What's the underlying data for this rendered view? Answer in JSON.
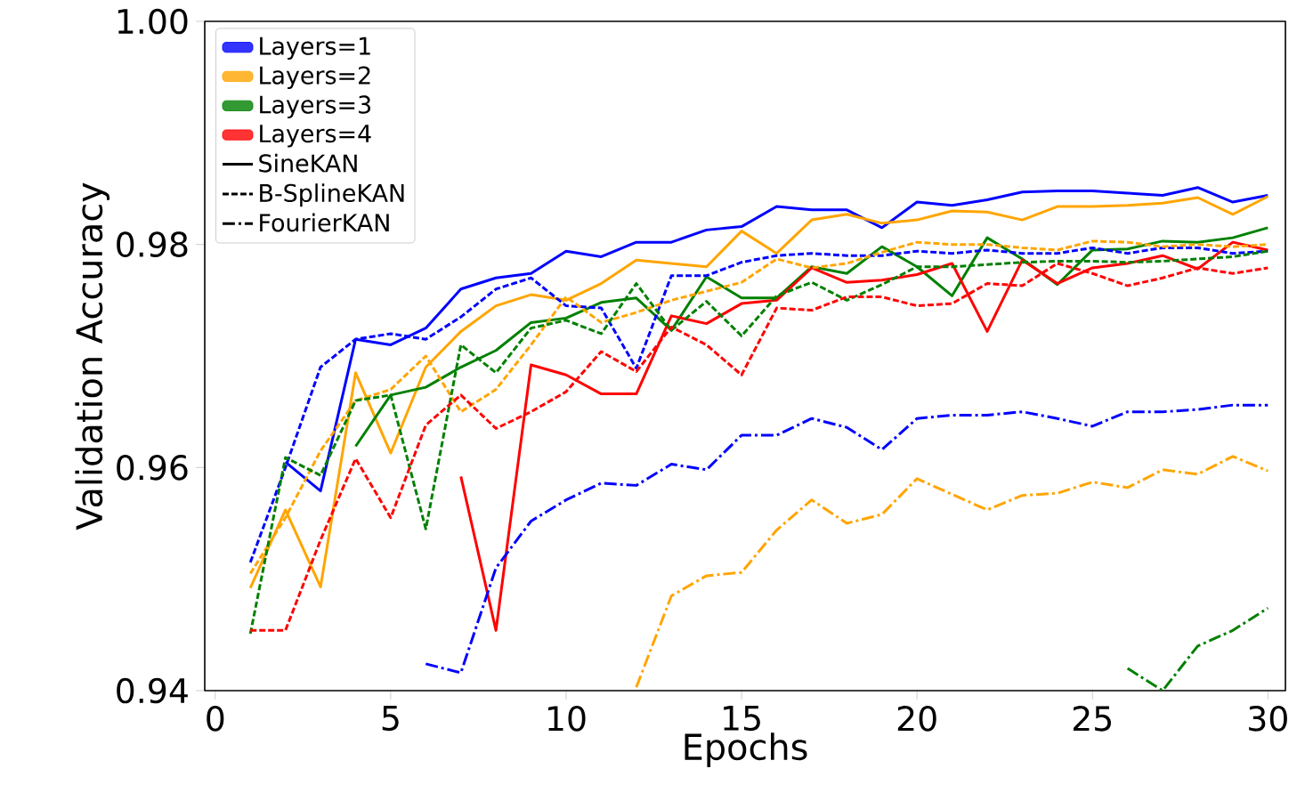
{
  "chart_data": {
    "type": "line",
    "xlabel": "Epochs",
    "ylabel": "Validation Accuracy",
    "legend": "top left",
    "annotations": [
      "SineKAN",
      "B-SplineKAN",
      "FourierKAN"
    ],
    "xlim": [
      -0.3,
      30.5
    ],
    "ylim": [
      0.94,
      1.0
    ],
    "xticks": [
      0,
      5,
      10,
      15,
      20,
      25,
      30
    ],
    "yticks": [
      {
        "value": 0.94,
        "label": "0.94"
      },
      {
        "value": 0.96,
        "label": "0.96"
      },
      {
        "value": 0.98,
        "label": "0.98"
      },
      {
        "value": 1.0,
        "label": "1.00"
      }
    ],
    "x": [
      1,
      2,
      3,
      4,
      5,
      6,
      7,
      8,
      9,
      10,
      11,
      12,
      13,
      14,
      15,
      16,
      17,
      18,
      19,
      20,
      21,
      22,
      23,
      24,
      25,
      26,
      27,
      28,
      29,
      30
    ],
    "series": [
      {
        "name": "Layers=1",
        "color": "#0000ff",
        "line_style": "solid",
        "values": [
          null,
          0.9605,
          0.9579,
          0.9715,
          0.971,
          0.9725,
          0.976,
          0.977,
          0.9774,
          0.9794,
          0.9789,
          0.9802,
          0.9802,
          0.9813,
          0.9816,
          0.9834,
          0.9831,
          0.9831,
          0.9815,
          0.9838,
          0.9835,
          0.984,
          0.9847,
          0.9848,
          0.9848,
          0.9846,
          0.9844,
          0.9851,
          0.9838,
          0.9844
        ]
      },
      {
        "name": "Layers=2",
        "color": "#ffa500",
        "line_style": "solid",
        "values": [
          0.9492,
          0.9562,
          0.9493,
          0.9685,
          0.9613,
          0.969,
          0.9722,
          0.9745,
          0.9755,
          0.975,
          0.9765,
          0.9786,
          0.9783,
          0.978,
          0.9812,
          0.9792,
          0.9822,
          0.9827,
          0.9819,
          0.9822,
          0.983,
          0.9829,
          0.9822,
          0.9834,
          0.9834,
          0.9835,
          0.9837,
          0.9842,
          0.9827,
          0.9843
        ]
      },
      {
        "name": "Layers=3",
        "color": "#008000",
        "line_style": "solid",
        "values": [
          null,
          null,
          null,
          0.9619,
          0.9665,
          0.9672,
          0.969,
          0.9705,
          0.973,
          0.9734,
          0.9748,
          0.9752,
          0.9723,
          0.9771,
          0.9752,
          0.9752,
          0.978,
          0.9774,
          0.9798,
          0.978,
          0.9754,
          0.9806,
          0.9787,
          0.9764,
          0.9795,
          0.9796,
          0.9803,
          0.9802,
          0.9806,
          0.9815
        ]
      },
      {
        "name": "Layers=4",
        "color": "#ff0000",
        "line_style": "solid",
        "values": [
          null,
          null,
          null,
          null,
          null,
          null,
          0.9592,
          0.9454,
          0.9692,
          0.9683,
          0.9666,
          0.9666,
          0.9736,
          0.9729,
          0.9747,
          0.975,
          0.9779,
          0.9766,
          0.9768,
          0.9773,
          0.9783,
          0.9722,
          0.9786,
          0.9765,
          0.9779,
          0.9783,
          0.979,
          0.9778,
          0.9802,
          0.9795
        ]
      },
      {
        "color": "#0000ff",
        "line_style": "dashed",
        "values": [
          0.9515,
          0.96,
          0.969,
          0.9715,
          0.972,
          0.9715,
          0.9735,
          0.976,
          0.977,
          0.9745,
          0.9743,
          0.9689,
          0.9772,
          0.9772,
          0.9784,
          0.979,
          0.9792,
          0.979,
          0.979,
          0.9794,
          0.9792,
          0.9795,
          0.9792,
          0.9792,
          0.9797,
          0.9792,
          0.9797,
          0.9797,
          0.9792,
          0.9794
        ]
      },
      {
        "color": "#ffa500",
        "line_style": "dashed",
        "values": [
          0.9505,
          0.9555,
          0.9615,
          0.966,
          0.967,
          0.97,
          0.965,
          0.967,
          0.971,
          0.9753,
          0.973,
          0.9739,
          0.975,
          0.9758,
          0.9766,
          0.9787,
          0.9779,
          0.9783,
          0.9793,
          0.9802,
          0.98,
          0.98,
          0.9797,
          0.9795,
          0.9803,
          0.9802,
          0.9798,
          0.98,
          0.9798,
          0.98
        ]
      },
      {
        "color": "#008000",
        "line_style": "dashed",
        "values": [
          0.9451,
          0.9609,
          0.9593,
          0.966,
          0.9665,
          0.9545,
          0.971,
          0.9685,
          0.9725,
          0.9732,
          0.972,
          0.9765,
          0.9723,
          0.9749,
          0.9718,
          0.9754,
          0.9766,
          0.975,
          0.9764,
          0.978,
          0.978,
          0.9782,
          0.9784,
          0.9785,
          0.9785,
          0.9784,
          0.9785,
          0.9787,
          0.9789,
          0.9794
        ]
      },
      {
        "color": "#ff0000",
        "line_style": "dashed",
        "values": [
          0.9454,
          0.9454,
          0.9535,
          0.9608,
          0.9555,
          0.9638,
          0.9665,
          0.9635,
          0.965,
          0.9668,
          0.9704,
          0.9686,
          0.9726,
          0.971,
          0.9683,
          0.9743,
          0.9741,
          0.9753,
          0.9753,
          0.9745,
          0.9747,
          0.9765,
          0.9763,
          0.9783,
          0.9774,
          0.9763,
          0.977,
          0.9779,
          0.9774,
          0.9779
        ]
      },
      {
        "color": "#0000ff",
        "line_style": "dashdot",
        "values": [
          null,
          null,
          null,
          null,
          null,
          0.9424,
          0.9416,
          0.951,
          0.9552,
          0.9571,
          0.9586,
          0.9584,
          0.9603,
          0.9598,
          0.9629,
          0.9629,
          0.9644,
          0.9636,
          0.9616,
          0.9644,
          0.9647,
          0.9647,
          0.965,
          0.9644,
          0.9637,
          0.965,
          0.965,
          0.9652,
          0.9656,
          0.9656
        ]
      },
      {
        "color": "#ffa500",
        "line_style": "dashdot",
        "values": [
          null,
          null,
          null,
          null,
          null,
          null,
          null,
          null,
          null,
          null,
          null,
          0.9403,
          0.9485,
          0.9503,
          0.9506,
          0.9544,
          0.9571,
          0.955,
          0.9558,
          0.959,
          0.9576,
          0.9562,
          0.9575,
          0.9577,
          0.9587,
          0.9582,
          0.9598,
          0.9594,
          0.961,
          0.9597
        ]
      },
      {
        "color": "#008000",
        "line_style": "dashdot",
        "values": [
          null,
          null,
          null,
          null,
          null,
          null,
          null,
          null,
          null,
          null,
          null,
          null,
          null,
          null,
          null,
          null,
          null,
          null,
          null,
          null,
          null,
          null,
          null,
          null,
          null,
          0.942,
          0.94,
          0.944,
          0.9454,
          0.9474
        ]
      }
    ]
  }
}
